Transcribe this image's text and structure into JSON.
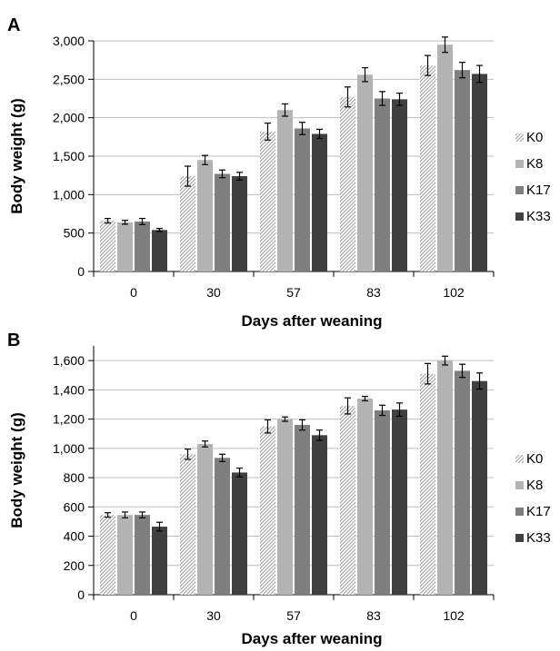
{
  "colors": {
    "K0": "hatch",
    "K8": "#b3b3b3",
    "K17": "#7f7f7f",
    "K33": "#404040",
    "gridline": "#bfbfbf",
    "axis": "#000000"
  },
  "chart_data": [
    {
      "type": "bar",
      "panel_label": "A",
      "categories": [
        "0",
        "30",
        "57",
        "83",
        "102"
      ],
      "xlabel": "Days after weaning",
      "ylabel": "Body weight (g)",
      "ylim": [
        0,
        3000
      ],
      "yticks": [
        0,
        500,
        1000,
        1500,
        2000,
        2500,
        3000
      ],
      "ytick_labels": [
        "0",
        "500",
        "1,000",
        "1,500",
        "2,000",
        "2,500",
        "3,000"
      ],
      "grid": "horizontal",
      "legend_position": "right",
      "series": [
        {
          "name": "K0",
          "values": [
            660,
            1240,
            1820,
            2270,
            2680
          ],
          "errors": [
            30,
            130,
            110,
            130,
            130
          ]
        },
        {
          "name": "K8",
          "values": [
            640,
            1450,
            2100,
            2560,
            2950
          ],
          "errors": [
            25,
            60,
            80,
            90,
            100
          ]
        },
        {
          "name": "K17",
          "values": [
            650,
            1270,
            1860,
            2250,
            2620
          ],
          "errors": [
            40,
            50,
            80,
            90,
            100
          ]
        },
        {
          "name": "K33",
          "values": [
            540,
            1240,
            1790,
            2240,
            2570
          ],
          "errors": [
            20,
            50,
            60,
            80,
            110
          ]
        }
      ]
    },
    {
      "type": "bar",
      "panel_label": "B",
      "categories": [
        "0",
        "30",
        "57",
        "83",
        "102"
      ],
      "xlabel": "Days after weaning",
      "ylabel": "Body weight (g)",
      "ylim": [
        0,
        1700
      ],
      "yticks": [
        0,
        200,
        400,
        600,
        800,
        1000,
        1200,
        1400,
        1600
      ],
      "ytick_labels": [
        "0",
        "200",
        "400",
        "600",
        "800",
        "1,000",
        "1,200",
        "1,400",
        "1,600"
      ],
      "grid": "horizontal",
      "legend_position": "right",
      "series": [
        {
          "name": "K0",
          "values": [
            545,
            960,
            1150,
            1290,
            1510
          ],
          "errors": [
            15,
            35,
            45,
            55,
            70
          ]
        },
        {
          "name": "K8",
          "values": [
            545,
            1030,
            1200,
            1340,
            1600
          ],
          "errors": [
            20,
            20,
            15,
            15,
            30
          ]
        },
        {
          "name": "K17",
          "values": [
            545,
            935,
            1160,
            1260,
            1530
          ],
          "errors": [
            20,
            25,
            35,
            35,
            45
          ]
        },
        {
          "name": "K33",
          "values": [
            465,
            835,
            1090,
            1265,
            1460
          ],
          "errors": [
            30,
            30,
            35,
            45,
            55
          ]
        }
      ]
    }
  ]
}
